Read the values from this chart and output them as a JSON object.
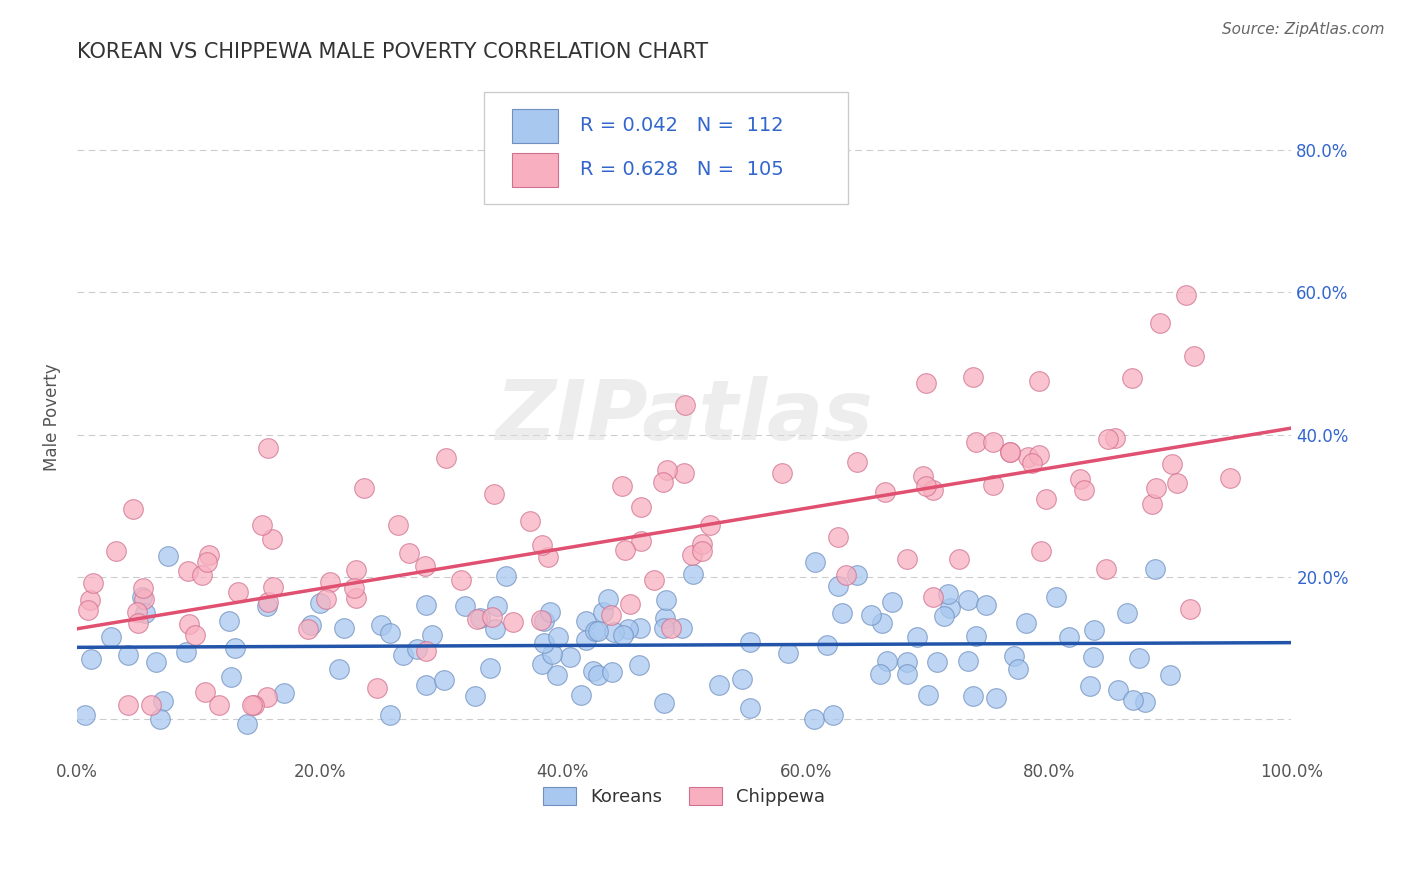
{
  "title": "KOREAN VS CHIPPEWA MALE POVERTY CORRELATION CHART",
  "source": "Source: ZipAtlas.com",
  "ylabel": "Male Poverty",
  "xlim": [
    0.0,
    1.0
  ],
  "ylim": [
    -0.05,
    0.9
  ],
  "xtick_positions": [
    0.0,
    0.2,
    0.4,
    0.6,
    0.8,
    1.0
  ],
  "xtick_labels": [
    "0.0%",
    "20.0%",
    "40.0%",
    "60.0%",
    "80.0%",
    "100.0%"
  ],
  "ytick_positions": [
    0.0,
    0.2,
    0.4,
    0.6,
    0.8
  ],
  "ytick_labels": [
    "",
    "20.0%",
    "40.0%",
    "60.0%",
    "80.0%"
  ],
  "series": [
    {
      "name": "Koreans",
      "R": 0.042,
      "N": 112,
      "color": "#A8C8F0",
      "edge_color": "#7090C0",
      "line_color": "#2255AA"
    },
    {
      "name": "Chippewa",
      "R": 0.628,
      "N": 105,
      "color": "#F8B0C0",
      "edge_color": "#D07090",
      "line_color": "#E05070"
    }
  ],
  "background_color": "#FFFFFF",
  "grid_color": "#CCCCCC",
  "title_color": "#333333",
  "title_fontsize": 15,
  "source_color": "#666666",
  "watermark": "ZIPatlas",
  "watermark_color": "#DDDDDD",
  "legend_text_color": "#3366CC",
  "legend_label_color": "#333333",
  "legend_R_korean": "R = 0.042",
  "legend_N_korean": "N =  112",
  "legend_R_chippewa": "R = 0.628",
  "legend_N_chippewa": "N =  105"
}
